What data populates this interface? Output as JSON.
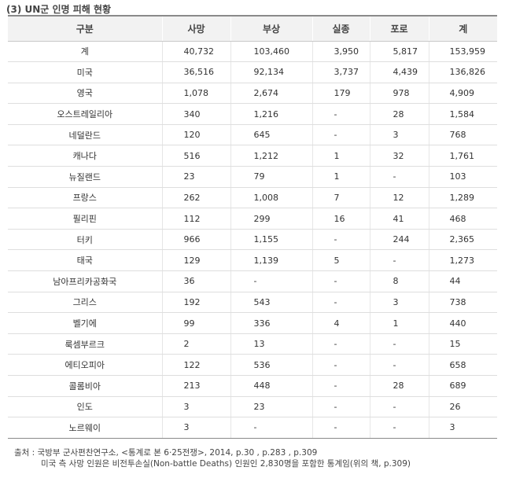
{
  "title": "(3) UN군 인명 피해 현황",
  "table": {
    "headers": [
      "구분",
      "사망",
      "부상",
      "실종",
      "포로",
      "계"
    ],
    "rows": [
      [
        "계",
        "40,732",
        "103,460",
        "3,950",
        "5,817",
        "153,959"
      ],
      [
        "미국",
        "36,516",
        "92,134",
        "3,737",
        "4,439",
        "136,826"
      ],
      [
        "영국",
        "1,078",
        "2,674",
        "179",
        "978",
        "4,909"
      ],
      [
        "오스트레일리아",
        "340",
        "1,216",
        "-",
        "28",
        "1,584"
      ],
      [
        "네덜란드",
        "120",
        "645",
        "-",
        "3",
        "768"
      ],
      [
        "캐나다",
        "516",
        "1,212",
        "1",
        "32",
        "1,761"
      ],
      [
        "뉴질랜드",
        "23",
        "79",
        "1",
        "-",
        "103"
      ],
      [
        "프랑스",
        "262",
        "1,008",
        "7",
        "12",
        "1,289"
      ],
      [
        "필리핀",
        "112",
        "299",
        "16",
        "41",
        "468"
      ],
      [
        "터키",
        "966",
        "1,155",
        "-",
        "244",
        "2,365"
      ],
      [
        "태국",
        "129",
        "1,139",
        "5",
        "-",
        "1,273"
      ],
      [
        "남아프리카공화국",
        "36",
        "-",
        "-",
        "8",
        "44"
      ],
      [
        "그리스",
        "192",
        "543",
        "-",
        "3",
        "738"
      ],
      [
        "벨기에",
        "99",
        "336",
        "4",
        "1",
        "440"
      ],
      [
        "룩셈부르크",
        "2",
        "13",
        "-",
        "-",
        "15"
      ],
      [
        "에티오피아",
        "122",
        "536",
        "-",
        "-",
        "658"
      ],
      [
        "콜롬비아",
        "213",
        "448",
        "-",
        "28",
        "689"
      ],
      [
        "인도",
        "3",
        "23",
        "-",
        "-",
        "26"
      ],
      [
        "노르웨이",
        "3",
        "-",
        "-",
        "-",
        "3"
      ]
    ]
  },
  "source": {
    "line1": "출처 : 국방부 군사편찬연구소, <통계로 본 6·25전쟁>, 2014, p.30 , p.283 , p.309",
    "line2": "미국 측 사망 인원은 비전투손실(Non-battle Deaths) 인원인 2,830명을 포함한 통계임(위의 책, p.309)"
  }
}
